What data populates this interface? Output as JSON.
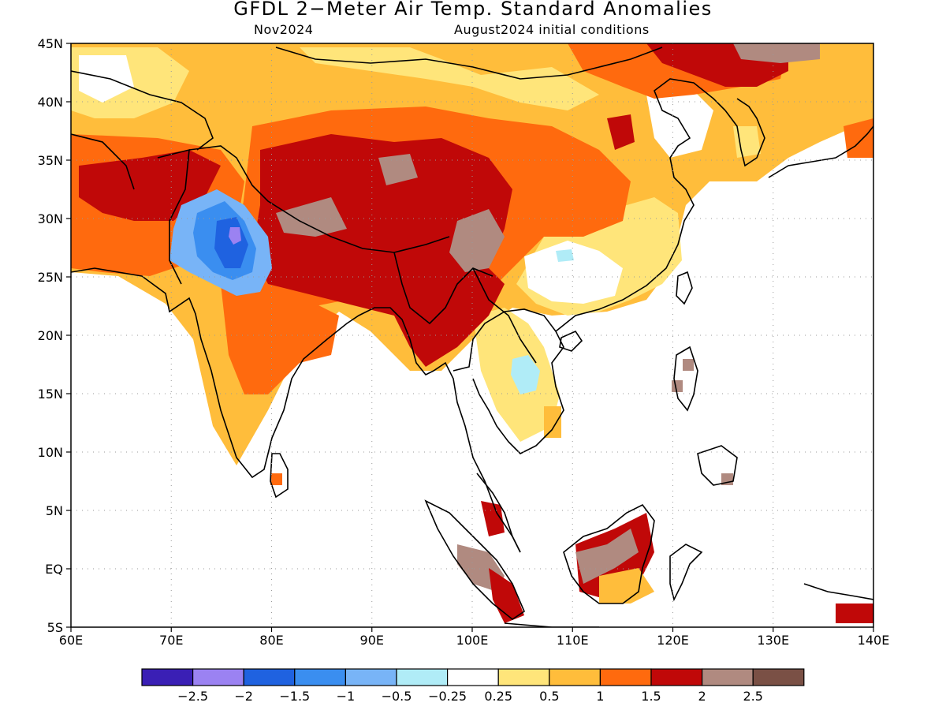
{
  "title": "GFDL 2−Meter Air Temp. Standard Anomalies",
  "subtitle_left": "Nov2024",
  "subtitle_right": "August2024 initial conditions",
  "map": {
    "lat_range": [
      -5,
      45
    ],
    "lon_range": [
      60,
      140
    ],
    "lat_ticks": [
      "45N",
      "40N",
      "35N",
      "30N",
      "25N",
      "20N",
      "15N",
      "10N",
      "5N",
      "EQ",
      "5S"
    ],
    "lon_ticks": [
      "60E",
      "70E",
      "80E",
      "90E",
      "100E",
      "110E",
      "120E",
      "130E",
      "140E"
    ],
    "gridlines": true
  },
  "colorbar": {
    "colors": [
      "#3a1fb5",
      "#9b82f2",
      "#1f62e0",
      "#3a8ef0",
      "#78b4f7",
      "#b0ecf7",
      "#ffffff",
      "#ffe57a",
      "#ffbd3b",
      "#ff6a0e",
      "#c00808",
      "#b08a80",
      "#7a5045"
    ],
    "labels": [
      "−2.5",
      "−2",
      "−1.5",
      "−1",
      "−0.5",
      "−0.25",
      "0.25",
      "0.5",
      "1",
      "1.5",
      "2",
      "2.5"
    ]
  }
}
